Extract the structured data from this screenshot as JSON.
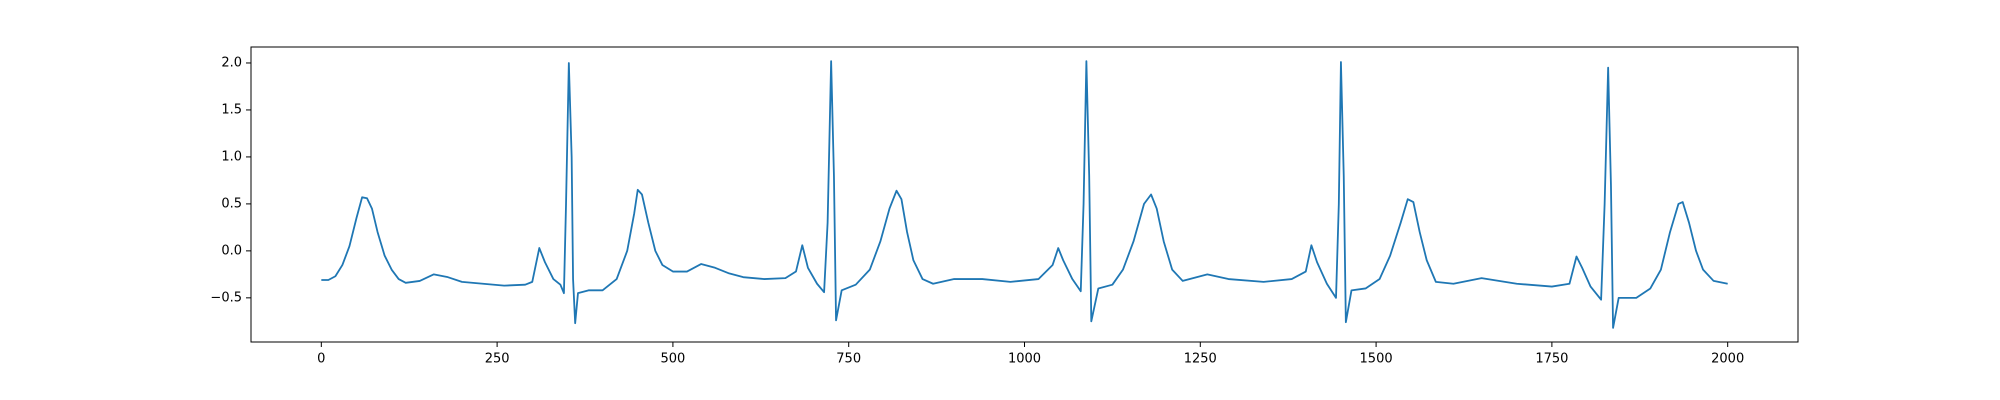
{
  "chart_data": {
    "type": "line",
    "color": "#1f77b4",
    "x": [
      0,
      10,
      20,
      30,
      40,
      50,
      58,
      65,
      72,
      80,
      90,
      100,
      110,
      120,
      140,
      160,
      180,
      200,
      230,
      260,
      290,
      300,
      310,
      318,
      330,
      340,
      345,
      348,
      352,
      356,
      358,
      361,
      365,
      380,
      400,
      420,
      435,
      445,
      450,
      456,
      465,
      475,
      485,
      500,
      520,
      540,
      560,
      580,
      600,
      630,
      660,
      675,
      684,
      692,
      705,
      715,
      720,
      725,
      729,
      732,
      740,
      760,
      780,
      795,
      808,
      818,
      825,
      833,
      842,
      855,
      870,
      900,
      940,
      980,
      1020,
      1040,
      1048,
      1055,
      1068,
      1080,
      1084,
      1088,
      1092,
      1095,
      1105,
      1125,
      1140,
      1155,
      1170,
      1180,
      1188,
      1198,
      1210,
      1225,
      1260,
      1290,
      1340,
      1380,
      1400,
      1408,
      1416,
      1430,
      1443,
      1447,
      1450,
      1454,
      1457,
      1465,
      1485,
      1505,
      1520,
      1535,
      1545,
      1553,
      1562,
      1572,
      1585,
      1610,
      1650,
      1700,
      1750,
      1775,
      1785,
      1793,
      1805,
      1820,
      1825,
      1830,
      1834,
      1837,
      1845,
      1870,
      1890,
      1905,
      1918,
      1930,
      1936,
      1945,
      1955,
      1965,
      1980,
      2000
    ],
    "values": [
      -0.31,
      -0.31,
      -0.27,
      -0.15,
      0.05,
      0.35,
      0.57,
      0.56,
      0.45,
      0.2,
      -0.05,
      -0.2,
      -0.3,
      -0.34,
      -0.32,
      -0.25,
      -0.28,
      -0.33,
      -0.35,
      -0.37,
      -0.36,
      -0.33,
      0.03,
      -0.12,
      -0.3,
      -0.36,
      -0.45,
      0.5,
      2.0,
      1.0,
      -0.3,
      -0.77,
      -0.45,
      -0.42,
      -0.42,
      -0.3,
      0.0,
      0.4,
      0.65,
      0.6,
      0.3,
      0.0,
      -0.15,
      -0.22,
      -0.22,
      -0.14,
      -0.18,
      -0.24,
      -0.28,
      -0.3,
      -0.29,
      -0.22,
      0.06,
      -0.18,
      -0.35,
      -0.44,
      0.3,
      2.02,
      0.8,
      -0.74,
      -0.42,
      -0.36,
      -0.2,
      0.1,
      0.45,
      0.64,
      0.55,
      0.2,
      -0.1,
      -0.3,
      -0.35,
      -0.3,
      -0.3,
      -0.33,
      -0.3,
      -0.15,
      0.03,
      -0.1,
      -0.3,
      -0.43,
      0.5,
      2.02,
      0.8,
      -0.75,
      -0.4,
      -0.36,
      -0.2,
      0.1,
      0.5,
      0.6,
      0.45,
      0.1,
      -0.2,
      -0.32,
      -0.25,
      -0.3,
      -0.33,
      -0.3,
      -0.22,
      0.06,
      -0.12,
      -0.35,
      -0.5,
      0.5,
      2.01,
      0.8,
      -0.76,
      -0.42,
      -0.4,
      -0.3,
      -0.05,
      0.3,
      0.55,
      0.52,
      0.2,
      -0.1,
      -0.33,
      -0.35,
      -0.29,
      -0.35,
      -0.38,
      -0.35,
      -0.06,
      -0.18,
      -0.38,
      -0.52,
      0.5,
      1.95,
      0.7,
      -0.82,
      -0.5,
      -0.5,
      -0.4,
      -0.2,
      0.2,
      0.5,
      0.52,
      0.3,
      0.0,
      -0.2,
      -0.32,
      -0.35
    ],
    "xlim": [
      -100,
      2100
    ],
    "xticks": [
      0,
      250,
      500,
      750,
      1000,
      1250,
      1500,
      1750,
      2000
    ],
    "ylim": [
      -0.97,
      2.17
    ],
    "yticks": [
      {
        "value": -0.5,
        "label": "−0.5"
      },
      {
        "value": 0,
        "label": "0.0"
      },
      0.5,
      {
        "value": 1,
        "label": "1.0"
      },
      1.5,
      {
        "value": 2,
        "label": "2.0"
      }
    ],
    "grid": false
  }
}
